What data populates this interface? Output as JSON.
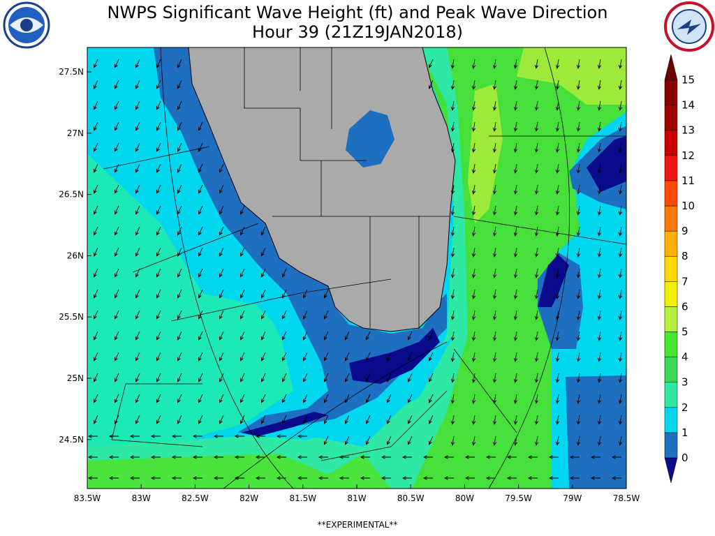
{
  "header": {
    "title": "NWPS Significant Wave Height (ft) and Peak Wave Direction",
    "subtitle": "Hour 39 (21Z19JAN2018)"
  },
  "map": {
    "lat_labels": [
      "27.5N",
      "27N",
      "26.5N",
      "26N",
      "25.5N",
      "25N",
      "24.5N"
    ],
    "lon_labels": [
      "83.5W",
      "83W",
      "82.5W",
      "82W",
      "81.5W",
      "81W",
      "80.5W",
      "80W",
      "79.5W",
      "79W",
      "78.5W"
    ]
  },
  "colorbar": {
    "labels": [
      0,
      1,
      2,
      3,
      4,
      5,
      6,
      7,
      8,
      9,
      10,
      11,
      12,
      13,
      14,
      15
    ]
  },
  "footer": "**EXPERIMENTAL**"
}
